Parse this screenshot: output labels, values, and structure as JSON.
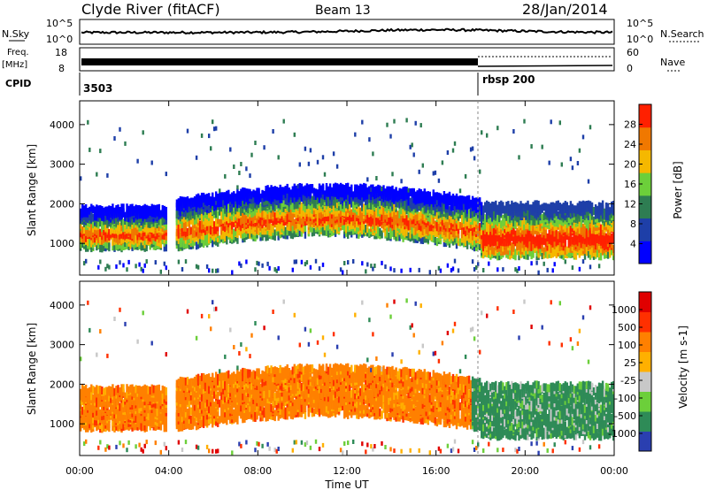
{
  "header": {
    "site": "Clyde River (fitACF)",
    "beam": "Beam 13",
    "date": "28/Jan/2014"
  },
  "strips": {
    "nsky_label": "N.Sky",
    "nsearch_label": "N.Search",
    "left_ticks": [
      "10^5",
      "10^0"
    ],
    "right_ticks": [
      "10^5",
      "10^0"
    ],
    "freq_label": "Freq.",
    "freq_unit": "[MHz]",
    "freq_ticks": [
      "18",
      "8"
    ],
    "nave_label": "Nave",
    "nave_ticks": [
      "60",
      "0"
    ],
    "cpid_label": "CPID",
    "cpid_1": "3503",
    "cpid_2": "rbsp 200"
  },
  "chart_data": [
    {
      "type": "heatmap",
      "name": "power",
      "ylabel": "Slant Range [km]",
      "yticks": [
        "4000",
        "3000",
        "2000",
        "1000"
      ],
      "ylim": [
        200,
        4600
      ],
      "colorbar_label": "Power [dB]",
      "colorbar_ticks": [
        "28",
        "24",
        "20",
        "16",
        "12",
        "8",
        "4"
      ],
      "colors": [
        "#0000ff",
        "#1e3fa8",
        "#2e7d52",
        "#6ccf3a",
        "#f5b800",
        "#f07800",
        "#ff2000"
      ]
    },
    {
      "type": "heatmap",
      "name": "velocity",
      "ylabel": "Slant Range [km]",
      "yticks": [
        "4000",
        "3000",
        "2000",
        "1000"
      ],
      "ylim": [
        200,
        4600
      ],
      "colorbar_label": "Velocity [m s-1]",
      "colorbar_ticks": [
        "1000",
        "500",
        "100",
        "25",
        "-25",
        "-100",
        "-500",
        "-1000"
      ],
      "colors": [
        "#2a3fb0",
        "#2e8b57",
        "#6ccf3a",
        "#c8c8c8",
        "#ffb000",
        "#ff8000",
        "#ff3000",
        "#e00000"
      ]
    }
  ],
  "xaxis": {
    "label": "Time UT",
    "ticks": [
      "00:00",
      "04:00",
      "08:00",
      "12:00",
      "16:00",
      "20:00",
      "00:00"
    ]
  }
}
